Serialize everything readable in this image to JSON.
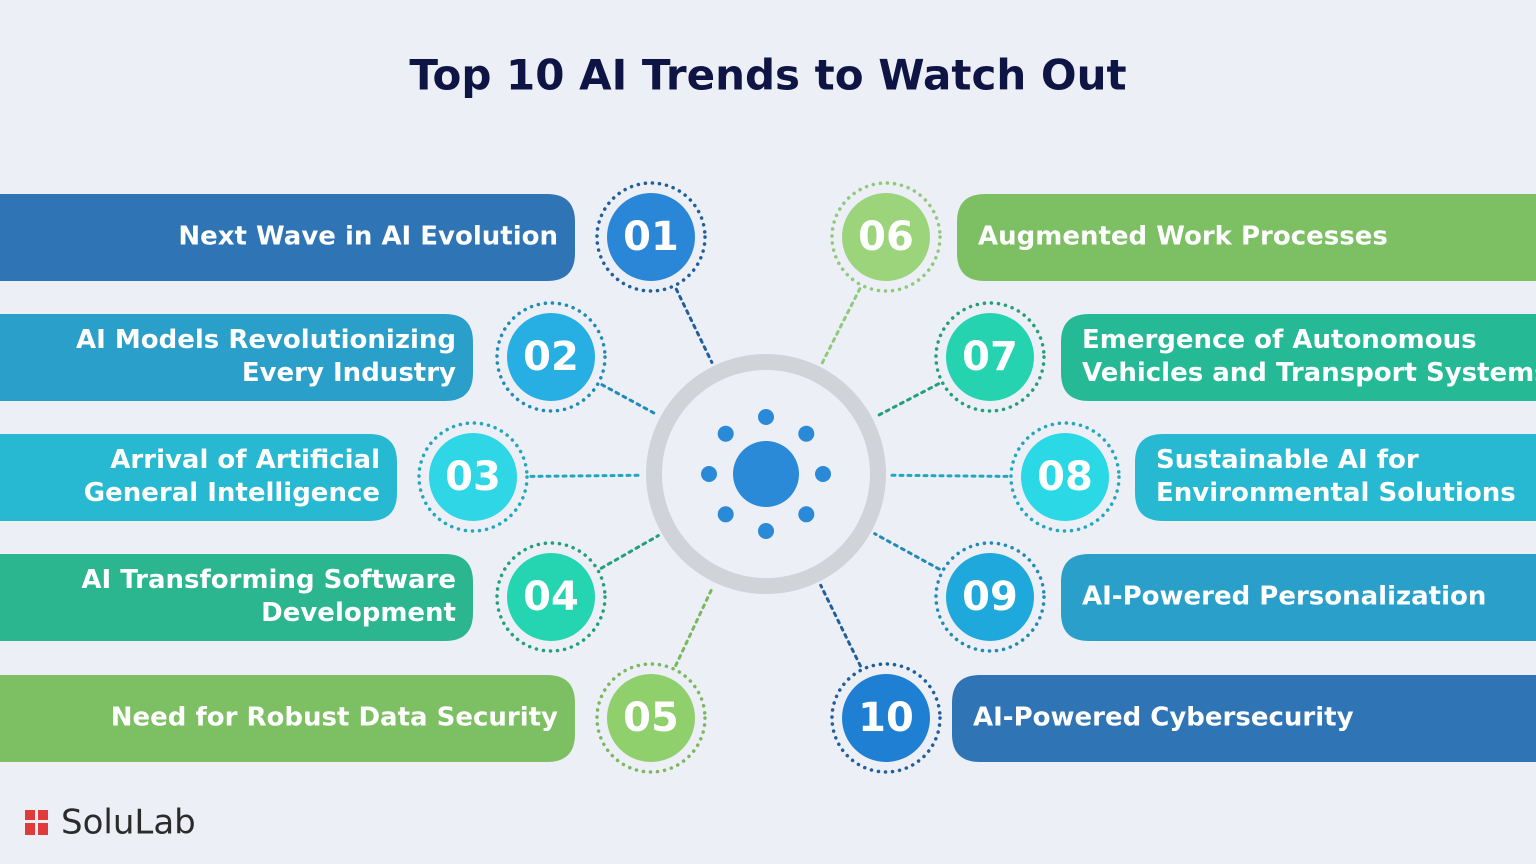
{
  "header": {
    "title": "Top 10 AI Trends to Watch Out"
  },
  "items": [
    {
      "number": "01",
      "lines": [
        "Next Wave in AI Evolution"
      ]
    },
    {
      "number": "02",
      "lines": [
        "AI Models Revolutionizing",
        "Every Industry"
      ]
    },
    {
      "number": "03",
      "lines": [
        "Arrival of Artificial",
        "General Intelligence"
      ]
    },
    {
      "number": "04",
      "lines": [
        "AI Transforming Software",
        "Development"
      ]
    },
    {
      "number": "05",
      "lines": [
        "Need for Robust Data Security"
      ]
    },
    {
      "number": "06",
      "lines": [
        "Augmented Work Processes"
      ]
    },
    {
      "number": "07",
      "lines": [
        "Emergence of Autonomous",
        "Vehicles and Transport Systems"
      ]
    },
    {
      "number": "08",
      "lines": [
        "Sustainable AI for",
        "Environmental Solutions"
      ]
    },
    {
      "number": "09",
      "lines": [
        "AI-Powered Personalization"
      ]
    },
    {
      "number": "10",
      "lines": [
        "AI-Powered Cybersecurity"
      ]
    }
  ],
  "logo": {
    "text": "SoluLab"
  }
}
